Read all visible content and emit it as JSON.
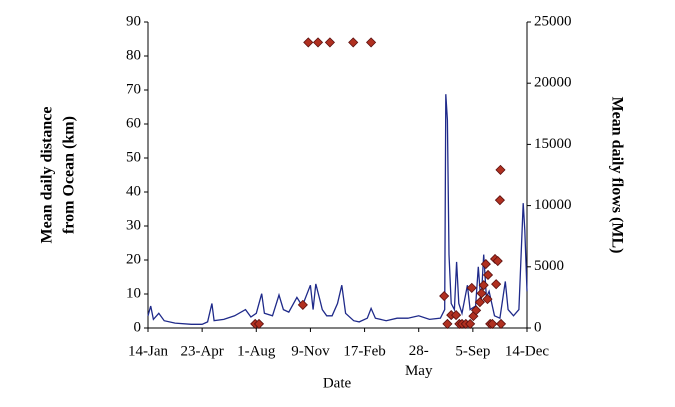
{
  "chart_data": {
    "type": "combo",
    "x_label": "Date",
    "y_label": [
      "Mean daily distance",
      "from Ocean (km)"
    ],
    "y2_label": "Mean daily flows (ML)",
    "xlim": [
      0,
      700
    ],
    "xticks": [
      {
        "value": 0,
        "label": "14-Jan"
      },
      {
        "value": 100,
        "label": "23-Apr"
      },
      {
        "value": 200,
        "label": "1-Aug"
      },
      {
        "value": 300,
        "label": "9-Nov"
      },
      {
        "value": 400,
        "label": "17-Feb"
      },
      {
        "value": 500,
        "label": "28-May"
      },
      {
        "value": 600,
        "label": "5-Sep"
      },
      {
        "value": 700,
        "label": "14-Dec"
      }
    ],
    "ylim": [
      0,
      90
    ],
    "yticks": [
      0,
      10,
      20,
      30,
      40,
      50,
      60,
      70,
      80,
      90
    ],
    "y2lim": [
      0,
      25000
    ],
    "y2ticks": [
      0,
      5000,
      10000,
      15000,
      20000,
      25000
    ],
    "series": [
      {
        "type": "line",
        "axis": "y2",
        "color": "#1f2a8a",
        "x": [
          0,
          5,
          10,
          20,
          30,
          50,
          80,
          100,
          110,
          118,
          122,
          140,
          160,
          180,
          190,
          200,
          210,
          215,
          230,
          242,
          250,
          260,
          275,
          285,
          300,
          305,
          310,
          318,
          322,
          330,
          340,
          350,
          358,
          365,
          380,
          390,
          405,
          412,
          420,
          440,
          460,
          480,
          500,
          520,
          540,
          548,
          550,
          553,
          556,
          560,
          566,
          570,
          574,
          580,
          590,
          595,
          605,
          610,
          615,
          620,
          625,
          630,
          640,
          650,
          660,
          665,
          675,
          685,
          693,
          696,
          700
        ],
        "values": [
          1000,
          1800,
          700,
          1200,
          600,
          400,
          300,
          300,
          500,
          2000,
          600,
          700,
          1000,
          1500,
          900,
          1200,
          2800,
          1200,
          1000,
          2700,
          1500,
          1300,
          2500,
          1800,
          3500,
          1500,
          3600,
          2200,
          1500,
          1000,
          1000,
          2000,
          3500,
          1200,
          600,
          500,
          800,
          1600,
          800,
          600,
          800,
          800,
          1000,
          700,
          800,
          1500,
          19100,
          17000,
          6000,
          2000,
          1500,
          5400,
          2000,
          1200,
          3500,
          1500,
          1800,
          5000,
          2000,
          6000,
          2500,
          3000,
          1000,
          800,
          3800,
          1500,
          1000,
          1500,
          10200,
          8000,
          3000
        ]
      },
      {
        "type": "scatter",
        "axis": "y",
        "color": "#b03020",
        "x": [
          198,
          205,
          286,
          296,
          314,
          336,
          379,
          412,
          547,
          553,
          560,
          569,
          575,
          580,
          587,
          595,
          598,
          601,
          606,
          613,
          616,
          620,
          624,
          627,
          628,
          632,
          636,
          641,
          643,
          646,
          650,
          651,
          652
        ],
        "values": [
          1.2,
          1.2,
          6.8,
          84,
          84,
          84,
          84,
          84,
          9.4,
          1.2,
          3.8,
          3.8,
          1.2,
          1.2,
          1.2,
          1.2,
          11.8,
          3.5,
          5.2,
          7.6,
          10.2,
          12.6,
          18.8,
          8.5,
          15.6,
          1.2,
          1.2,
          20.3,
          12.9,
          19.7,
          37.6,
          46.5,
          1.2
        ]
      }
    ]
  }
}
